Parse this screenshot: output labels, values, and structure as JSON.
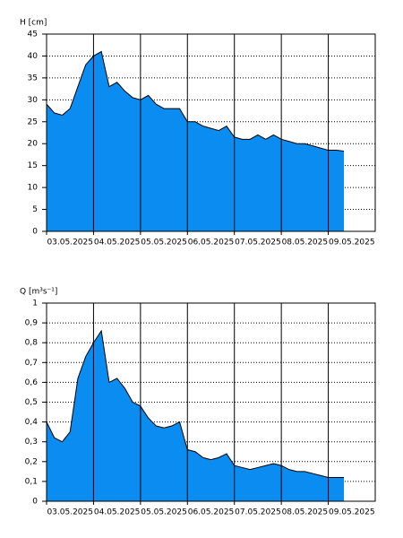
{
  "chart_data": [
    {
      "type": "area",
      "ylabel": "H [cm]",
      "color": "#0a8cf0",
      "grid": true,
      "categories": [
        "03.05.2025",
        "04.05.2025",
        "05.05.2025",
        "06.05.2025",
        "07.05.2025",
        "08.05.2025",
        "09.05.2025"
      ],
      "values": [
        [
          29,
          27,
          26.5,
          28,
          33,
          38
        ],
        [
          40,
          41,
          33,
          34,
          32,
          30.5
        ],
        [
          30,
          31,
          29,
          28,
          28,
          28
        ],
        [
          25,
          25,
          24,
          23.5,
          23,
          24
        ],
        [
          21.5,
          21,
          21,
          22,
          21,
          22
        ],
        [
          21,
          20.5,
          20,
          20,
          19.5,
          19
        ],
        [
          18.5,
          18.5,
          18.3
        ]
      ],
      "ylim": [
        0,
        45
      ],
      "yticks": [
        0,
        5,
        10,
        15,
        20,
        25,
        30,
        35,
        40,
        45
      ]
    },
    {
      "type": "area",
      "ylabel": "Q [m³s⁻¹]",
      "color": "#0a8cf0",
      "grid": true,
      "categories": [
        "03.05.2025",
        "04.05.2025",
        "05.05.2025",
        "06.05.2025",
        "07.05.2025",
        "08.05.2025",
        "09.05.2025"
      ],
      "values": [
        [
          0.4,
          0.32,
          0.3,
          0.35,
          0.62,
          0.73
        ],
        [
          0.8,
          0.86,
          0.6,
          0.62,
          0.57,
          0.5
        ],
        [
          0.48,
          0.42,
          0.38,
          0.37,
          0.38,
          0.4
        ],
        [
          0.26,
          0.25,
          0.22,
          0.21,
          0.22,
          0.24
        ],
        [
          0.18,
          0.17,
          0.16,
          0.17,
          0.18,
          0.19
        ],
        [
          0.18,
          0.16,
          0.15,
          0.15,
          0.14,
          0.13
        ],
        [
          0.12,
          0.12,
          0.12
        ]
      ],
      "ylim": [
        0,
        1
      ],
      "yticks": [
        0,
        {
          "value": 0.1,
          "label": "0,1"
        },
        {
          "value": 0.2,
          "label": "0,2"
        },
        {
          "value": 0.3,
          "label": "0,3"
        },
        {
          "value": 0.4,
          "label": "0,4"
        },
        {
          "value": 0.5,
          "label": "0,5"
        },
        {
          "value": 0.6,
          "label": "0,6"
        },
        {
          "value": 0.7,
          "label": "0,7"
        },
        {
          "value": 0.8,
          "label": "0,8"
        },
        {
          "value": 0.9,
          "label": "0,9"
        },
        1
      ]
    }
  ]
}
